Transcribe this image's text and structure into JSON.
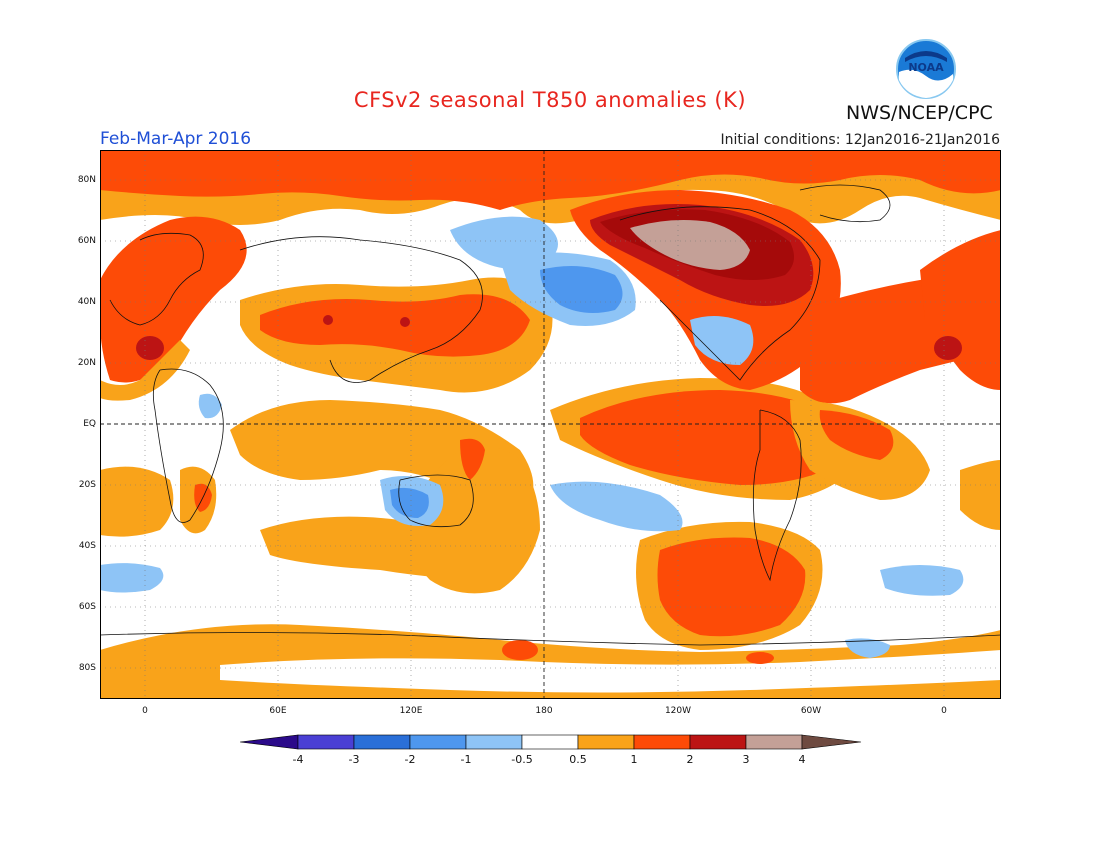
{
  "header": {
    "title": "CFSv2 seasonal T850 anomalies (K)",
    "agency": "NWS/NCEP/CPC",
    "logo_text": "NOAA",
    "period": "Feb-Mar-Apr 2016",
    "initial_conditions": "Initial conditions: 12Jan2016-21Jan2016"
  },
  "map": {
    "lat_labels": [
      "80N",
      "60N",
      "40N",
      "20N",
      "EQ",
      "20S",
      "40S",
      "60S",
      "80S"
    ],
    "lon_labels": [
      "0",
      "60E",
      "120E",
      "180",
      "120W",
      "60W",
      "0"
    ],
    "palette": {
      "n4": "#2b0a8a",
      "n3": "#4a3fd4",
      "n2": "#2a6fd8",
      "n1": "#4e97ee",
      "n05": "#8ec4f6",
      "zero": "#ffffff",
      "p05": "#f9a31a",
      "p1": "#fd4b07",
      "p2": "#bc1414",
      "p3": "#a50a0a",
      "p4": "#c4a097",
      "max": "#6e4a40"
    }
  },
  "colorbar": {
    "labels": [
      "-4",
      "-3",
      "-2",
      "-1",
      "-0.5",
      "0.5",
      "1",
      "2",
      "3",
      "4"
    ]
  }
}
